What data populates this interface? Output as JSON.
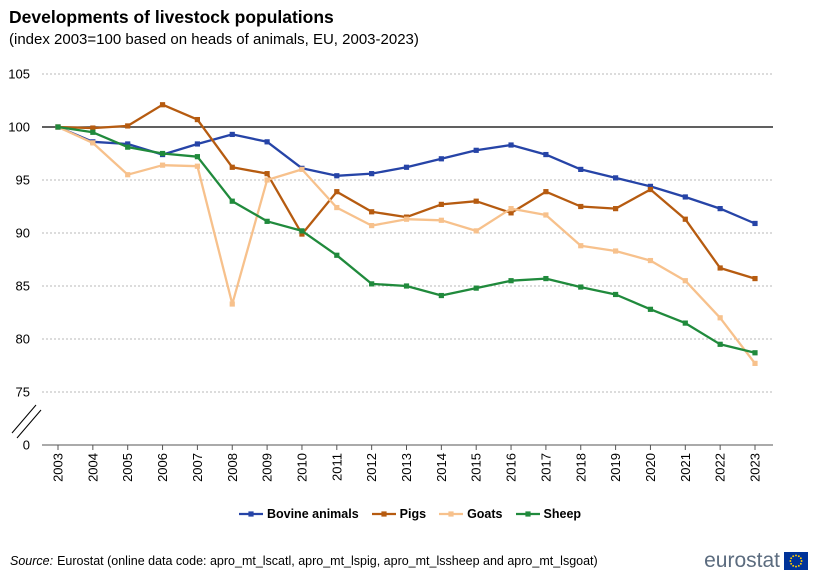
{
  "title": "Developments of livestock populations",
  "subtitle": "(index 2003=100 based on heads of animals, EU, 2003-2023)",
  "chart_data": {
    "type": "line",
    "categories": [
      "2003",
      "2004",
      "2005",
      "2006",
      "2007",
      "2008",
      "2009",
      "2010",
      "2011",
      "2012",
      "2013",
      "2014",
      "2015",
      "2016",
      "2017",
      "2018",
      "2019",
      "2020",
      "2021",
      "2022",
      "2023"
    ],
    "y_ticks": [
      105,
      100,
      95,
      90,
      85,
      80,
      75,
      0
    ],
    "ylim": [
      75,
      105
    ],
    "y_axis_break": true,
    "grid": true,
    "legend_position": "bottom",
    "series": [
      {
        "name": "Bovine animals",
        "color": "#2644A7",
        "values": [
          100,
          98.6,
          98.4,
          97.4,
          98.4,
          99.3,
          98.6,
          96.1,
          95.4,
          95.6,
          96.2,
          97.0,
          97.8,
          98.3,
          97.4,
          96.0,
          95.2,
          94.4,
          93.4,
          92.3,
          90.9
        ]
      },
      {
        "name": "Pigs",
        "color": "#B65B10",
        "values": [
          100,
          99.9,
          100.1,
          102.1,
          100.7,
          96.2,
          95.6,
          89.9,
          93.9,
          92.0,
          91.5,
          92.7,
          93.0,
          91.9,
          93.9,
          92.5,
          92.3,
          94.1,
          91.3,
          86.7,
          85.7
        ]
      },
      {
        "name": "Goats",
        "color": "#F7C18C",
        "values": [
          100,
          98.5,
          95.5,
          96.4,
          96.3,
          83.3,
          95.0,
          96.0,
          92.4,
          90.7,
          91.3,
          91.2,
          90.2,
          92.3,
          91.7,
          88.8,
          88.3,
          87.4,
          85.5,
          82.0,
          77.7
        ]
      },
      {
        "name": "Sheep",
        "color": "#208A3C",
        "values": [
          100,
          99.5,
          98.1,
          97.5,
          97.2,
          93.0,
          91.1,
          90.2,
          87.9,
          85.2,
          85.0,
          84.1,
          84.8,
          85.5,
          85.7,
          84.9,
          84.2,
          82.8,
          81.5,
          79.5,
          78.7
        ]
      }
    ]
  },
  "source": {
    "label": "Source:",
    "text": "Eurostat (online data code: apro_mt_lscatl, apro_mt_lspig, apro_mt_lssheep and apro_mt_lsgoat)"
  },
  "logo": {
    "text": "eurostat",
    "flag_color": "#003399",
    "star_color": "#FFCC00"
  }
}
